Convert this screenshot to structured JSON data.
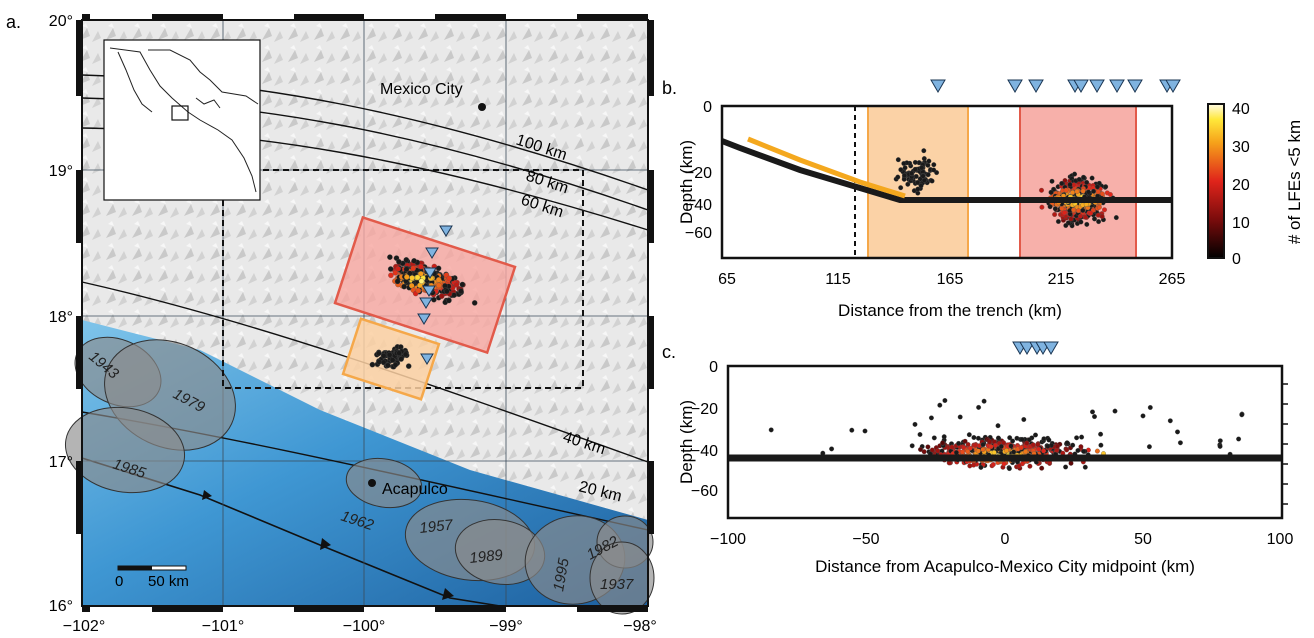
{
  "panel_a": {
    "label": "a.",
    "lat_ticks": [
      "20°",
      "19°",
      "18°",
      "17°",
      "16°"
    ],
    "lon_ticks": [
      "−102°",
      "−101°",
      "−100°",
      "−99°",
      "−98°"
    ],
    "contour_labels": [
      "100 km",
      "80 km",
      "60 km",
      "40 km",
      "20 km"
    ],
    "city_labels": {
      "mexico_city": "Mexico City",
      "acapulco": "Acapulco"
    },
    "rupture_years": [
      "1943",
      "1979",
      "1985",
      "1962",
      "1957",
      "1989",
      "1995",
      "1982",
      "1937"
    ],
    "scale_bar": {
      "zero": "0",
      "label": "50 km"
    }
  },
  "panel_b": {
    "label": "b.",
    "ylabel": "Depth (km)",
    "xlabel": "Distance from the trench (km)",
    "x_ticks": [
      "65",
      "115",
      "165",
      "215",
      "265"
    ],
    "y_ticks": [
      "0",
      "−20",
      "−40",
      "−60"
    ],
    "colorbar_label": "# of LFEs <5 km",
    "colorbar_ticks": [
      "40",
      "30",
      "20",
      "10",
      "0"
    ]
  },
  "panel_c": {
    "label": "c.",
    "ylabel": "Depth (km)",
    "xlabel": "Distance from Acapulco-Mexico City midpoint (km)",
    "x_ticks": [
      "−100",
      "−50",
      "0",
      "50",
      "100"
    ],
    "y_ticks": [
      "0",
      "−20",
      "−40",
      "−60"
    ]
  },
  "colors": {
    "orange_box": "#f5a84a",
    "red_box": "#e25a4a",
    "station": "#7fb3e0",
    "slab": "#1a1a1a",
    "slab_upper": "#f4a81e"
  }
}
